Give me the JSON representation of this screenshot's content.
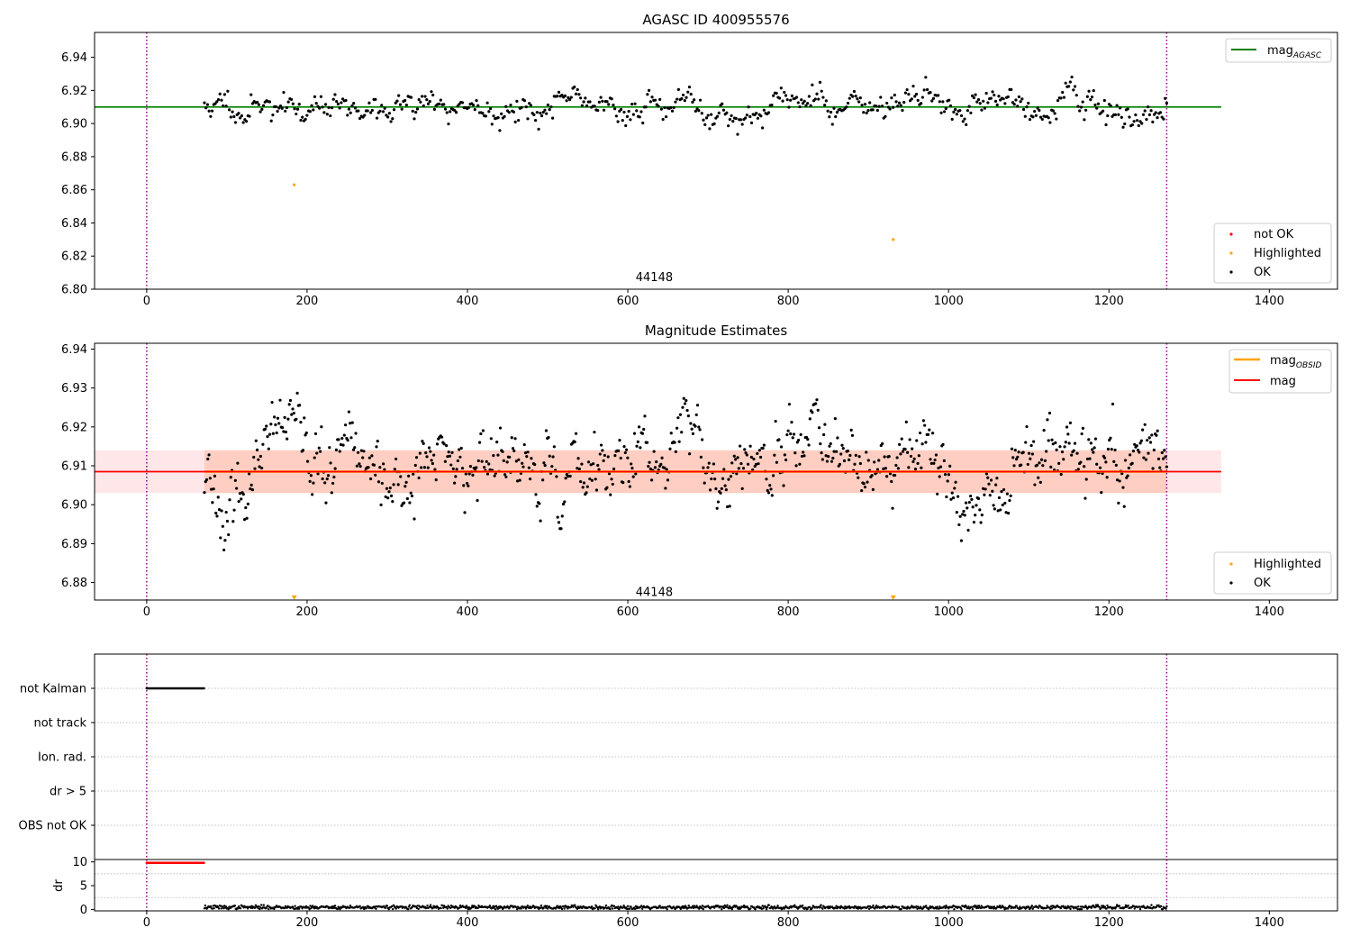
{
  "chart_data": [
    {
      "type": "scatter",
      "title": "AGASC ID 400955576",
      "xlim": [
        -65,
        1485
      ],
      "ylim": [
        6.8,
        6.955
      ],
      "xticks": [
        0,
        200,
        400,
        600,
        800,
        1000,
        1200,
        1400
      ],
      "yticks": [
        "6.80",
        "6.82",
        "6.84",
        "6.86",
        "6.88",
        "6.90",
        "6.92",
        "6.94"
      ],
      "annotation": {
        "text": "44148",
        "x": 633,
        "y": 6.807
      },
      "vlines": [
        0,
        1272
      ],
      "hline": {
        "name": "mag_AGASC",
        "y": 6.91,
        "x_range": [
          -65,
          1340
        ],
        "color": "#008000"
      },
      "series": [
        {
          "name": "not OK",
          "color": "#ff0000",
          "points": []
        },
        {
          "name": "Highlighted",
          "color": "#ffa500",
          "points": [
            [
              184,
              6.863
            ],
            [
              931,
              6.83
            ]
          ]
        },
        {
          "name": "OK",
          "color": "#000000",
          "x_range": [
            72,
            1272
          ],
          "count": 620,
          "mean": 6.91,
          "std": 0.0055,
          "seed": 11
        }
      ],
      "legend_top": {
        "label": "mag",
        "subscript": "AGASC",
        "color": "#008000"
      },
      "legend_bottom": [
        {
          "label": "not OK",
          "color": "#ff0000"
        },
        {
          "label": "Highlighted",
          "color": "#ffa500"
        },
        {
          "label": "OK",
          "color": "#000000"
        }
      ]
    },
    {
      "type": "scatter",
      "title": "Magnitude Estimates",
      "xlim": [
        -65,
        1485
      ],
      "ylim": [
        6.8755,
        6.9415
      ],
      "xticks": [
        0,
        200,
        400,
        600,
        800,
        1000,
        1200,
        1400
      ],
      "yticks": [
        "6.88",
        "6.89",
        "6.90",
        "6.91",
        "6.92",
        "6.93",
        "6.94"
      ],
      "annotation": {
        "text": "44148",
        "x": 633,
        "y": 6.8775
      },
      "vlines": [
        0,
        1272
      ],
      "band": {
        "low": 6.903,
        "high": 6.914,
        "x_range": [
          -65,
          1340
        ]
      },
      "hline": {
        "name": "mag",
        "y": 6.9085,
        "x_range": [
          -65,
          1340
        ],
        "color": "#ff0000"
      },
      "obsid_line": {
        "name": "mag_OBSID",
        "y": 6.9085,
        "x_range": [
          72,
          1272
        ],
        "color": "#ffa500"
      },
      "series": [
        {
          "name": "Highlighted",
          "color": "#ffa500",
          "points": [
            [
              184,
              6.876
            ],
            [
              931,
              6.876
            ]
          ]
        },
        {
          "name": "OK",
          "color": "#000000",
          "x_range": [
            72,
            1272
          ],
          "count": 840,
          "mean": 6.9085,
          "std": 0.0055,
          "seed": 23
        }
      ],
      "legend_top": [
        {
          "label": "mag",
          "subscript": "OBSID",
          "color": "#ffa500"
        },
        {
          "label": "mag",
          "subscript": "",
          "color": "#ff0000"
        }
      ],
      "legend_bottom": [
        {
          "label": "Highlighted",
          "color": "#ffa500"
        },
        {
          "label": "OK",
          "color": "#000000"
        }
      ]
    },
    {
      "type": "scatter",
      "title": "",
      "xlim": [
        -65,
        1485
      ],
      "categories": [
        "not Kalman",
        "not track",
        "Ion. rad.",
        "dr > 5",
        "OBS not OK"
      ],
      "vlines": [
        0,
        1272
      ],
      "flag_series": [
        {
          "category": "not Kalman",
          "x_range": [
            0,
            72
          ],
          "color": "#000000"
        }
      ]
    },
    {
      "type": "scatter",
      "title": "",
      "xlim": [
        -65,
        1485
      ],
      "ylim": [
        -0.3,
        10.5
      ],
      "xticks": [
        0,
        200,
        400,
        600,
        800,
        1000,
        1200,
        1400
      ],
      "yticks": [
        "0",
        "5",
        "10"
      ],
      "ylabel": "dr",
      "vlines": [
        0,
        1272
      ],
      "series": [
        {
          "name": "dr clipped",
          "color": "#ff0000",
          "x_range": [
            0,
            72
          ],
          "y": 9.8
        },
        {
          "name": "dr",
          "color": "#000000",
          "x_range": [
            72,
            1272
          ],
          "mean": 0.45,
          "std": 0.2,
          "seed": 37
        }
      ]
    }
  ]
}
